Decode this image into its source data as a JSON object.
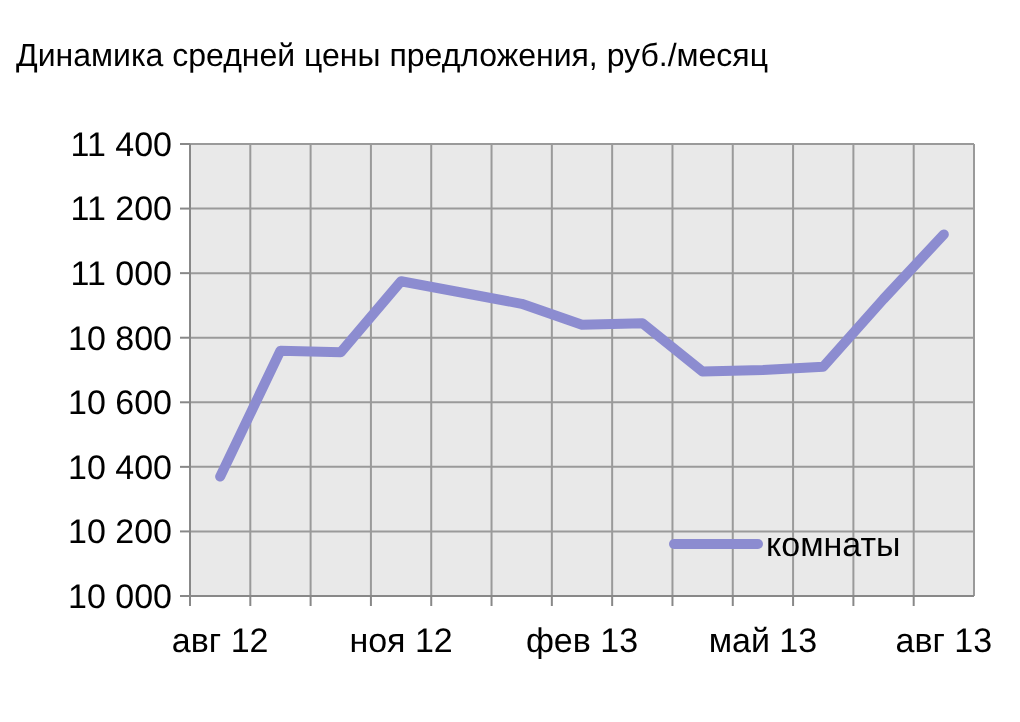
{
  "chart_data": {
    "type": "line",
    "title": "Динамика средней цены предложения, руб./месяц",
    "categories": [
      "авг 12",
      null,
      null,
      "ноя 12",
      null,
      null,
      "фев 13",
      null,
      null,
      "май 13",
      null,
      null,
      "авг 13"
    ],
    "series": [
      {
        "name": "комнаты",
        "color": "#8c8cd0",
        "values": [
          10370,
          10760,
          10755,
          10975,
          10940,
          10905,
          10840,
          10845,
          10695,
          10700,
          10710,
          10920,
          11120
        ]
      }
    ],
    "ylim": [
      10000,
      11400
    ],
    "yticks": [
      {
        "value": 10000,
        "label": "10 000"
      },
      {
        "value": 10200,
        "label": "10 200"
      },
      {
        "value": 10400,
        "label": "10 400"
      },
      {
        "value": 10600,
        "label": "10 600"
      },
      {
        "value": 10800,
        "label": "10 800"
      },
      {
        "value": 11000,
        "label": "11 000"
      },
      {
        "value": 11200,
        "label": "11 200"
      },
      {
        "value": 11400,
        "label": "11 400"
      }
    ],
    "grid": true,
    "legend": "bottom right",
    "line_style": "solid"
  }
}
